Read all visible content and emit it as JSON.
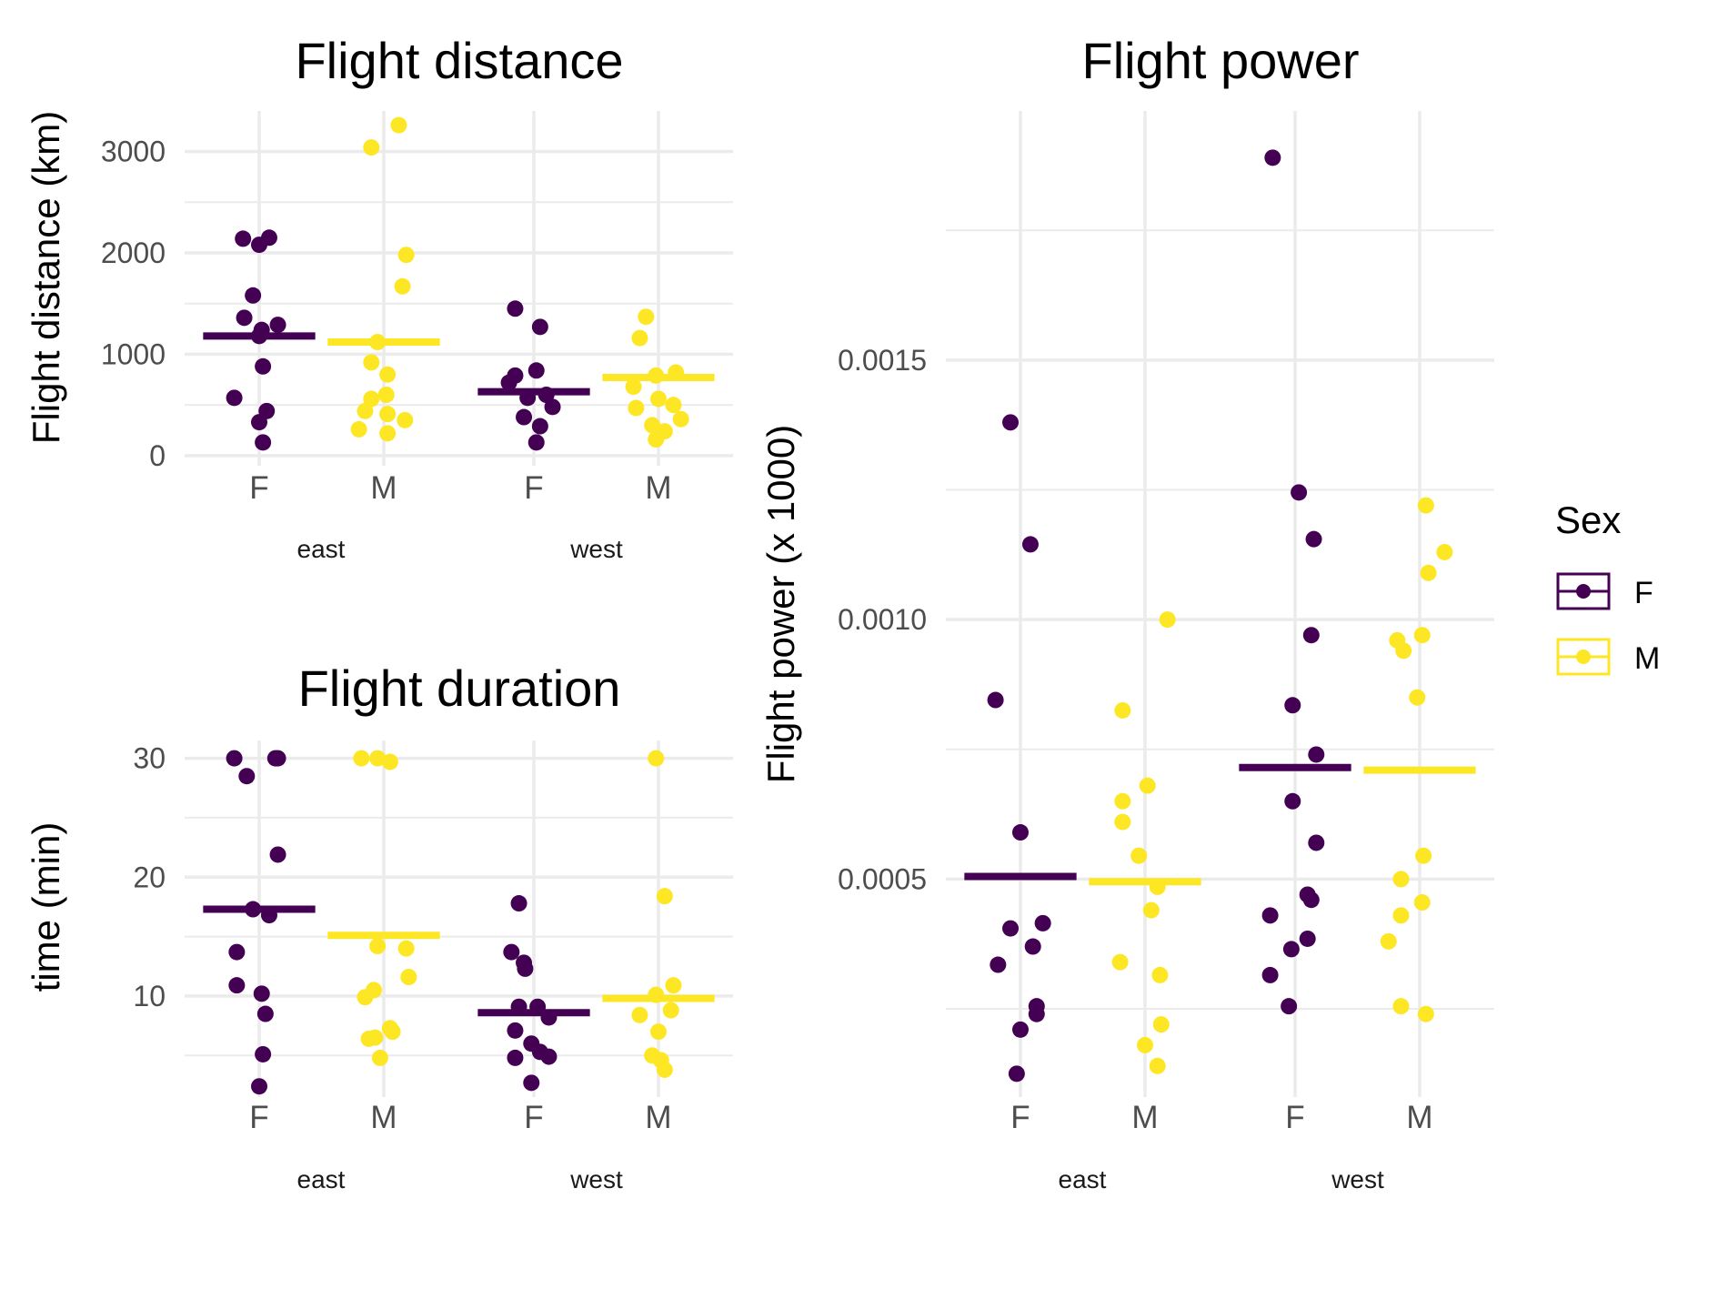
{
  "legend": {
    "title": "Sex",
    "items": [
      {
        "label": "F",
        "color": "#440154"
      },
      {
        "label": "M",
        "color": "#FDE725"
      }
    ]
  },
  "chart_data": [
    {
      "id": "distance",
      "type": "scatter",
      "title": "Flight distance",
      "xlabel": "",
      "ylabel": "Flight distance (km)",
      "categories": [
        "F",
        "M",
        "F",
        "M"
      ],
      "groups": [
        "east",
        "west"
      ],
      "ylim": [
        -100,
        3400
      ],
      "yticks": [
        0,
        1000,
        2000,
        3000
      ],
      "ytick_labels": [
        "0",
        "1000",
        "2000",
        "3000"
      ],
      "grid": true,
      "series": [
        {
          "group": "east",
          "sex": "F",
          "mean": 1180,
          "points": [
            [
              -0.13,
              2140
            ],
            [
              0.0,
              2080
            ],
            [
              0.08,
              2150
            ],
            [
              -0.12,
              1360
            ],
            [
              -0.05,
              1580
            ],
            [
              0.02,
              1240
            ],
            [
              0.15,
              1290
            ],
            [
              0.0,
              1180
            ],
            [
              0.03,
              880
            ],
            [
              -0.2,
              570
            ],
            [
              0.06,
              440
            ],
            [
              0.0,
              330
            ],
            [
              0.03,
              130
            ]
          ]
        },
        {
          "group": "east",
          "sex": "M",
          "mean": 1120,
          "points": [
            [
              -0.1,
              3040
            ],
            [
              0.12,
              3260
            ],
            [
              0.18,
              1980
            ],
            [
              0.15,
              1670
            ],
            [
              -0.05,
              1120
            ],
            [
              -0.1,
              920
            ],
            [
              0.03,
              800
            ],
            [
              -0.15,
              440
            ],
            [
              -0.1,
              560
            ],
            [
              0.02,
              600
            ],
            [
              0.03,
              410
            ],
            [
              0.17,
              350
            ],
            [
              -0.2,
              260
            ],
            [
              0.03,
              220
            ]
          ]
        },
        {
          "group": "west",
          "sex": "F",
          "mean": 630,
          "points": [
            [
              -0.15,
              1450
            ],
            [
              0.05,
              1270
            ],
            [
              -0.15,
              790
            ],
            [
              0.02,
              840
            ],
            [
              -0.2,
              720
            ],
            [
              -0.05,
              570
            ],
            [
              0.1,
              600
            ],
            [
              0.15,
              480
            ],
            [
              -0.08,
              380
            ],
            [
              0.05,
              290
            ],
            [
              0.02,
              130
            ]
          ]
        },
        {
          "group": "west",
          "sex": "M",
          "mean": 770,
          "points": [
            [
              -0.1,
              1370
            ],
            [
              -0.15,
              1160
            ],
            [
              -0.02,
              790
            ],
            [
              0.14,
              820
            ],
            [
              -0.2,
              680
            ],
            [
              0.0,
              560
            ],
            [
              0.12,
              500
            ],
            [
              -0.18,
              470
            ],
            [
              0.18,
              360
            ],
            [
              -0.05,
              300
            ],
            [
              0.05,
              240
            ],
            [
              -0.02,
              160
            ]
          ]
        }
      ]
    },
    {
      "id": "duration",
      "type": "scatter",
      "title": "Flight duration",
      "xlabel": "",
      "ylabel": "time (min)",
      "categories": [
        "F",
        "M",
        "F",
        "M"
      ],
      "groups": [
        "east",
        "west"
      ],
      "ylim": [
        1.5,
        31.5
      ],
      "yticks": [
        10,
        20,
        30
      ],
      "ytick_labels": [
        "10",
        "20",
        "30"
      ],
      "grid": true,
      "series": [
        {
          "group": "east",
          "sex": "F",
          "mean": 17.3,
          "points": [
            [
              -0.2,
              30
            ],
            [
              -0.1,
              28.5
            ],
            [
              0.13,
              30
            ],
            [
              0.15,
              30
            ],
            [
              0.15,
              21.9
            ],
            [
              -0.05,
              17.3
            ],
            [
              0.08,
              16.8
            ],
            [
              -0.18,
              13.7
            ],
            [
              -0.18,
              10.9
            ],
            [
              0.02,
              10.2
            ],
            [
              0.05,
              8.5
            ],
            [
              0.03,
              5.1
            ],
            [
              0.0,
              2.4
            ]
          ]
        },
        {
          "group": "east",
          "sex": "M",
          "mean": 15.1,
          "points": [
            [
              -0.18,
              30
            ],
            [
              -0.05,
              30
            ],
            [
              0.05,
              29.7
            ],
            [
              -0.05,
              14.2
            ],
            [
              0.18,
              14.0
            ],
            [
              0.2,
              11.6
            ],
            [
              -0.08,
              10.5
            ],
            [
              -0.15,
              9.9
            ],
            [
              0.05,
              7.3
            ],
            [
              0.07,
              7.0
            ],
            [
              -0.12,
              6.4
            ],
            [
              -0.07,
              6.5
            ],
            [
              -0.03,
              4.8
            ]
          ]
        },
        {
          "group": "west",
          "sex": "F",
          "mean": 8.6,
          "points": [
            [
              -0.12,
              17.8
            ],
            [
              -0.18,
              13.7
            ],
            [
              -0.08,
              12.8
            ],
            [
              -0.07,
              12.3
            ],
            [
              -0.12,
              9.1
            ],
            [
              0.03,
              9.1
            ],
            [
              0.12,
              8.2
            ],
            [
              -0.15,
              7.1
            ],
            [
              -0.02,
              6.0
            ],
            [
              0.05,
              5.3
            ],
            [
              0.12,
              4.9
            ],
            [
              -0.15,
              4.8
            ],
            [
              -0.02,
              2.7
            ]
          ]
        },
        {
          "group": "west",
          "sex": "M",
          "mean": 9.8,
          "points": [
            [
              -0.02,
              30
            ],
            [
              0.05,
              18.4
            ],
            [
              -0.15,
              8.4
            ],
            [
              0.12,
              10.9
            ],
            [
              -0.02,
              10.1
            ],
            [
              0.1,
              8.8
            ],
            [
              0.0,
              7.0
            ],
            [
              -0.05,
              5.0
            ],
            [
              0.02,
              4.6
            ],
            [
              0.05,
              3.8
            ]
          ]
        }
      ]
    },
    {
      "id": "power",
      "type": "scatter",
      "title": "Flight power",
      "xlabel": "",
      "ylabel": "Flight power (x 1000)",
      "categories": [
        "F",
        "M",
        "F",
        "M"
      ],
      "groups": [
        "east",
        "west"
      ],
      "ylim": [
        8e-05,
        0.00198
      ],
      "yticks": [
        0.0005,
        0.001,
        0.0015
      ],
      "ytick_labels": [
        "0.0005",
        "0.0010",
        "0.0015"
      ],
      "grid": true,
      "series": [
        {
          "group": "east",
          "sex": "F",
          "mean": 0.000505,
          "points": [
            [
              -0.2,
              0.000845
            ],
            [
              0.0,
              0.00059
            ],
            [
              -0.08,
              0.00138
            ],
            [
              0.08,
              0.001145
            ],
            [
              0.18,
              0.000415
            ],
            [
              -0.08,
              0.000405
            ],
            [
              0.1,
              0.00037
            ],
            [
              -0.18,
              0.000335
            ],
            [
              0.13,
              0.000255
            ],
            [
              0.13,
              0.00024
            ],
            [
              0.0,
              0.00021
            ],
            [
              -0.03,
              0.000125
            ]
          ]
        },
        {
          "group": "east",
          "sex": "M",
          "mean": 0.000495,
          "points": [
            [
              0.18,
              0.001
            ],
            [
              -0.18,
              0.000825
            ],
            [
              -0.18,
              0.00065
            ],
            [
              0.02,
              0.00068
            ],
            [
              -0.18,
              0.00061
            ],
            [
              -0.05,
              0.000545
            ],
            [
              0.1,
              0.000485
            ],
            [
              0.05,
              0.00044
            ],
            [
              -0.2,
              0.00034
            ],
            [
              0.12,
              0.000315
            ],
            [
              0.13,
              0.00022
            ],
            [
              0.0,
              0.00018
            ],
            [
              0.1,
              0.00014
            ]
          ]
        },
        {
          "group": "west",
          "sex": "F",
          "mean": 0.000715,
          "points": [
            [
              -0.18,
              0.00189
            ],
            [
              0.03,
              0.001245
            ],
            [
              0.15,
              0.001155
            ],
            [
              0.13,
              0.00097
            ],
            [
              -0.02,
              0.000835
            ],
            [
              0.17,
              0.00074
            ],
            [
              -0.02,
              0.00065
            ],
            [
              0.17,
              0.00057
            ],
            [
              0.1,
              0.00047
            ],
            [
              0.13,
              0.00046
            ],
            [
              -0.2,
              0.00043
            ],
            [
              0.1,
              0.000385
            ],
            [
              -0.03,
              0.000365
            ],
            [
              -0.2,
              0.000315
            ],
            [
              -0.05,
              0.000255
            ]
          ]
        },
        {
          "group": "west",
          "sex": "M",
          "mean": 0.00071,
          "points": [
            [
              0.05,
              0.00122
            ],
            [
              0.2,
              0.00113
            ],
            [
              0.07,
              0.00109
            ],
            [
              -0.18,
              0.00096
            ],
            [
              0.02,
              0.00097
            ],
            [
              -0.13,
              0.00094
            ],
            [
              -0.02,
              0.00085
            ],
            [
              0.03,
              0.000545
            ],
            [
              -0.15,
              0.0005
            ],
            [
              -0.15,
              0.00043
            ],
            [
              0.02,
              0.000455
            ],
            [
              -0.25,
              0.00038
            ],
            [
              -0.15,
              0.000255
            ],
            [
              0.05,
              0.00024
            ]
          ]
        }
      ]
    }
  ]
}
